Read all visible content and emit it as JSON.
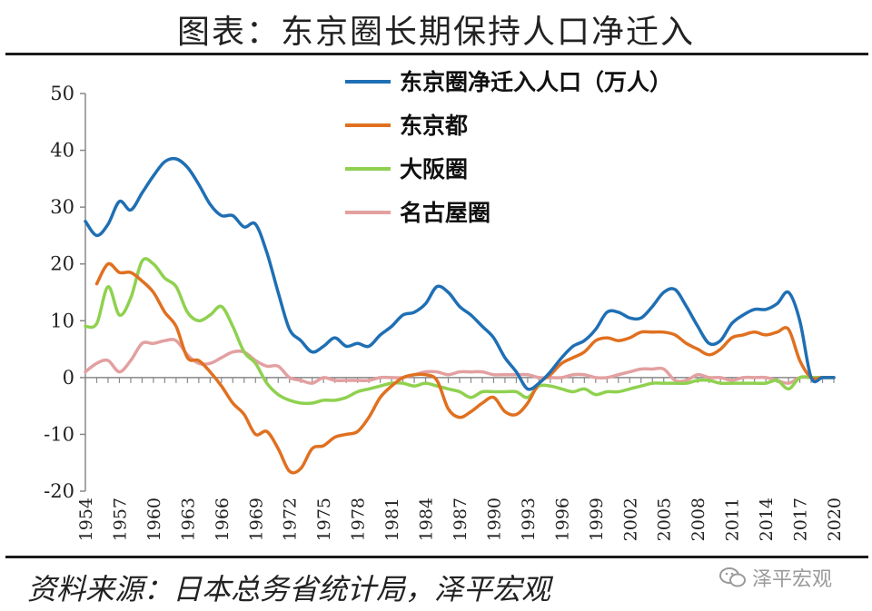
{
  "title": "图表：东京圈长期保持人口净迁入",
  "source": "资料来源：日本总务省统计局，泽平宏观",
  "watermark": "泽平宏观",
  "chart_data": {
    "type": "line",
    "xlim": [
      1954,
      2020
    ],
    "ylim": [
      -20,
      50
    ],
    "yticks": [
      -20,
      -10,
      0,
      10,
      20,
      30,
      40,
      50
    ],
    "xtick_labels": [
      "1954",
      "1957",
      "1960",
      "1963",
      "1966",
      "1969",
      "1972",
      "1975",
      "1978",
      "1981",
      "1984",
      "1987",
      "1990",
      "1993",
      "1996",
      "1999",
      "2002",
      "2005",
      "2008",
      "2011",
      "2014",
      "2017",
      "2020"
    ],
    "legend_position": "top-right",
    "series": [
      {
        "name": "东京圈净迁入人口（万人）",
        "color": "#1f6fb4",
        "x": [
          1954,
          1955,
          1956,
          1957,
          1958,
          1959,
          1960,
          1961,
          1962,
          1963,
          1964,
          1965,
          1966,
          1967,
          1968,
          1969,
          1970,
          1971,
          1972,
          1973,
          1974,
          1975,
          1976,
          1977,
          1978,
          1979,
          1980,
          1981,
          1982,
          1983,
          1984,
          1985,
          1986,
          1987,
          1988,
          1989,
          1990,
          1991,
          1992,
          1993,
          1994,
          1995,
          1996,
          1997,
          1998,
          1999,
          2000,
          2001,
          2002,
          2003,
          2004,
          2005,
          2006,
          2007,
          2008,
          2009,
          2010,
          2011,
          2012,
          2013,
          2014,
          2015,
          2016,
          2017,
          2018,
          2019,
          2020
        ],
        "y": [
          27.5,
          25.0,
          27.0,
          31.0,
          29.5,
          32.5,
          35.5,
          38.0,
          38.5,
          37.0,
          34.0,
          30.5,
          28.5,
          28.5,
          26.5,
          27.0,
          22.0,
          15.0,
          8.5,
          6.5,
          4.5,
          5.5,
          7.0,
          5.5,
          6.0,
          5.5,
          7.5,
          9.0,
          11.0,
          11.5,
          13.0,
          16.0,
          15.0,
          12.5,
          11.0,
          9.0,
          7.0,
          3.5,
          1.0,
          -2.0,
          -1.0,
          1.0,
          3.5,
          5.5,
          6.5,
          8.5,
          11.5,
          11.5,
          10.5,
          10.5,
          12.5,
          15.0,
          15.5,
          12.5,
          9.0,
          6.0,
          6.5,
          9.5,
          11.0,
          12.0,
          12.0,
          13.0,
          15.0,
          10.0,
          0,
          0,
          0
        ]
      },
      {
        "name": "东京都",
        "color": "#e07020",
        "x": [
          1955,
          1956,
          1957,
          1958,
          1959,
          1960,
          1961,
          1962,
          1963,
          1964,
          1965,
          1966,
          1967,
          1968,
          1969,
          1970,
          1971,
          1972,
          1973,
          1974,
          1975,
          1976,
          1977,
          1978,
          1979,
          1980,
          1981,
          1982,
          1983,
          1984,
          1985,
          1986,
          1987,
          1988,
          1989,
          1990,
          1991,
          1992,
          1993,
          1994,
          1995,
          1996,
          1997,
          1998,
          1999,
          2000,
          2001,
          2002,
          2003,
          2004,
          2005,
          2006,
          2007,
          2008,
          2009,
          2010,
          2011,
          2012,
          2013,
          2014,
          2015,
          2016,
          2017,
          2018,
          2019,
          2020
        ],
        "y": [
          16.5,
          20.0,
          18.5,
          18.5,
          17.0,
          15.0,
          11.5,
          9.0,
          3.5,
          3.0,
          1.0,
          -1.5,
          -4.5,
          -6.5,
          -10.0,
          -9.5,
          -12.5,
          -16.5,
          -16.0,
          -12.5,
          -12.0,
          -10.5,
          -10.0,
          -9.5,
          -7.0,
          -3.5,
          -1.5,
          0,
          0.5,
          0.5,
          -0.5,
          -5.5,
          -7.0,
          -6.0,
          -4.5,
          -3.5,
          -6.0,
          -6.5,
          -4.5,
          -1.0,
          0.5,
          2.5,
          3.5,
          4.5,
          6.5,
          7.0,
          6.5,
          7.0,
          8.0,
          8.0,
          8.0,
          7.5,
          6.0,
          5.0,
          4.0,
          5.0,
          7.0,
          7.5,
          8.0,
          7.5,
          8.0,
          8.5,
          3.0,
          0,
          0,
          0
        ]
      },
      {
        "name": "大阪圈",
        "color": "#8fd14f",
        "x": [
          1954,
          1955,
          1956,
          1957,
          1958,
          1959,
          1960,
          1961,
          1962,
          1963,
          1964,
          1965,
          1966,
          1967,
          1968,
          1969,
          1970,
          1971,
          1972,
          1973,
          1974,
          1975,
          1976,
          1977,
          1978,
          1979,
          1980,
          1981,
          1982,
          1983,
          1984,
          1985,
          1986,
          1987,
          1988,
          1989,
          1990,
          1991,
          1992,
          1993,
          1994,
          1995,
          1996,
          1997,
          1998,
          1999,
          2000,
          2001,
          2002,
          2003,
          2004,
          2005,
          2006,
          2007,
          2008,
          2009,
          2010,
          2011,
          2012,
          2013,
          2014,
          2015,
          2016,
          2017,
          2018,
          2019,
          2020
        ],
        "y": [
          9.0,
          9.5,
          16.0,
          11.0,
          14.0,
          20.5,
          20.0,
          17.5,
          16.0,
          11.5,
          10.0,
          11.0,
          12.5,
          9.0,
          4.5,
          2.5,
          -1.0,
          -3.0,
          -4.0,
          -4.5,
          -4.5,
          -4.0,
          -4.0,
          -3.5,
          -2.5,
          -2.0,
          -1.5,
          -1.0,
          -1.0,
          -1.5,
          -1.0,
          -1.5,
          -2.0,
          -2.5,
          -3.5,
          -2.5,
          -2.5,
          -2.5,
          -2.5,
          -3.5,
          -1.5,
          -1.5,
          -2.0,
          -2.5,
          -2.0,
          -3.0,
          -2.5,
          -2.5,
          -2.0,
          -1.5,
          -1.0,
          -1.0,
          -1.0,
          -1.0,
          -0.5,
          -0.5,
          -1.0,
          -1.0,
          -1.0,
          -1.0,
          -1.0,
          -0.5,
          -2.0,
          0,
          0,
          0,
          0
        ]
      },
      {
        "name": "名古屋圈",
        "color": "#e3a0a0",
        "x": [
          1954,
          1955,
          1956,
          1957,
          1958,
          1959,
          1960,
          1961,
          1962,
          1963,
          1964,
          1965,
          1966,
          1967,
          1968,
          1969,
          1970,
          1971,
          1972,
          1973,
          1974,
          1975,
          1976,
          1977,
          1978,
          1979,
          1980,
          1981,
          1982,
          1983,
          1984,
          1985,
          1986,
          1987,
          1988,
          1989,
          1990,
          1991,
          1992,
          1993,
          1994,
          1995,
          1996,
          1997,
          1998,
          1999,
          2000,
          2001,
          2002,
          2003,
          2004,
          2005,
          2006,
          2007,
          2008,
          2009,
          2010,
          2011,
          2012,
          2013,
          2014,
          2015,
          2016,
          2017,
          2018,
          2019,
          2020
        ],
        "y": [
          1.0,
          2.5,
          3.0,
          1.0,
          3.0,
          6.0,
          6.0,
          6.5,
          6.5,
          4.0,
          2.5,
          2.5,
          3.5,
          4.5,
          4.5,
          3.0,
          2.0,
          2.0,
          0,
          -0.5,
          -1.0,
          0,
          -0.5,
          -0.5,
          -0.5,
          -0.5,
          0,
          0,
          0,
          0.5,
          1.0,
          1.0,
          0.5,
          1.0,
          1.0,
          1.0,
          0.5,
          0.5,
          0.5,
          0.5,
          0,
          0,
          0,
          0.5,
          0.5,
          0,
          0,
          0.5,
          1.0,
          1.5,
          1.5,
          1.5,
          -0.5,
          -0.5,
          0.5,
          0,
          0,
          -0.5,
          0,
          0,
          0,
          -0.5,
          -1.0,
          0,
          0,
          0,
          0
        ]
      }
    ]
  }
}
